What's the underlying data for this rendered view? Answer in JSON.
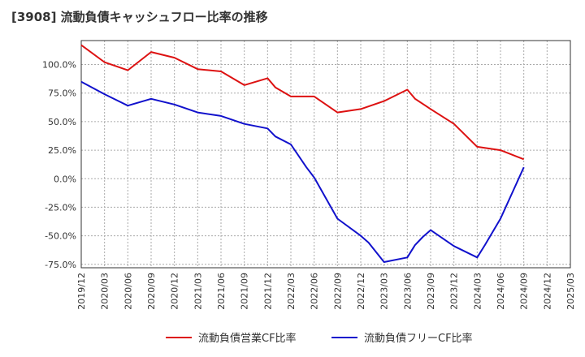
{
  "title": "[3908]  流動負債キャッシュフロー比率の推移",
  "colors": {
    "series1": "#dd1111",
    "series2": "#1111cc",
    "grid": "#aaaaaa",
    "frame": "#333333"
  },
  "chart_data": {
    "type": "line",
    "title": "[3908]  流動負債キャッシュフロー比率の推移",
    "xlabel": "",
    "ylabel": "",
    "x": [
      "2019/12",
      "2020/03",
      "2020/06",
      "2020/09",
      "2020/12",
      "2021/03",
      "2021/06",
      "2021/09",
      "2021/12",
      "2022/03",
      "2022/06",
      "2022/09",
      "2022/12",
      "2023/03",
      "2023/06",
      "2023/09",
      "2023/12",
      "2024/03",
      "2024/06",
      "2024/09",
      "2024/12",
      "2025/03"
    ],
    "yticks": [
      "100.0%",
      "75.0%",
      "50.0%",
      "25.0%",
      "0.0%",
      "-25.0%",
      "-50.0%",
      "-75.0%"
    ],
    "ytick_values": [
      100,
      75,
      50,
      25,
      0,
      -25,
      -50,
      -75
    ],
    "ylim": [
      -78,
      121
    ],
    "grid": true,
    "legend_position": "bottom",
    "series": [
      {
        "name": "流動負債営業CF比率",
        "color": "#dd1111",
        "points": [
          [
            "2019/12",
            117
          ],
          [
            "2020/03",
            102
          ],
          [
            "2020/06",
            95
          ],
          [
            "2020/09",
            111
          ],
          [
            "2020/12",
            106
          ],
          [
            "2021/03",
            96
          ],
          [
            "2021/06",
            94
          ],
          [
            "2021/09",
            82
          ],
          [
            "2021/12",
            88
          ],
          [
            "2022/01",
            80
          ],
          [
            "2022/03",
            72
          ],
          [
            "2022/06",
            72
          ],
          [
            "2022/09",
            58
          ],
          [
            "2022/12",
            61
          ],
          [
            "2023/03",
            68
          ],
          [
            "2023/06",
            78
          ],
          [
            "2023/07",
            70
          ],
          [
            "2023/09",
            61
          ],
          [
            "2023/12",
            48
          ],
          [
            "2024/03",
            28
          ],
          [
            "2024/06",
            25
          ],
          [
            "2024/09",
            17
          ]
        ]
      },
      {
        "name": "流動負債フリーCF比率",
        "color": "#1111cc",
        "points": [
          [
            "2019/12",
            85
          ],
          [
            "2020/03",
            74
          ],
          [
            "2020/06",
            64
          ],
          [
            "2020/09",
            70
          ],
          [
            "2020/12",
            65
          ],
          [
            "2021/03",
            58
          ],
          [
            "2021/06",
            55
          ],
          [
            "2021/09",
            48
          ],
          [
            "2021/12",
            44
          ],
          [
            "2022/01",
            37
          ],
          [
            "2022/03",
            30
          ],
          [
            "2022/05",
            10
          ],
          [
            "2022/06",
            1
          ],
          [
            "2022/09",
            -35
          ],
          [
            "2022/12",
            -50
          ],
          [
            "2023/01",
            -56
          ],
          [
            "2023/03",
            -73
          ],
          [
            "2023/06",
            -69
          ],
          [
            "2023/07",
            -58
          ],
          [
            "2023/08",
            -51
          ],
          [
            "2023/09",
            -45
          ],
          [
            "2023/12",
            -59
          ],
          [
            "2024/03",
            -69
          ],
          [
            "2024/04",
            -58
          ],
          [
            "2024/06",
            -35
          ],
          [
            "2024/09",
            10
          ]
        ]
      }
    ]
  }
}
